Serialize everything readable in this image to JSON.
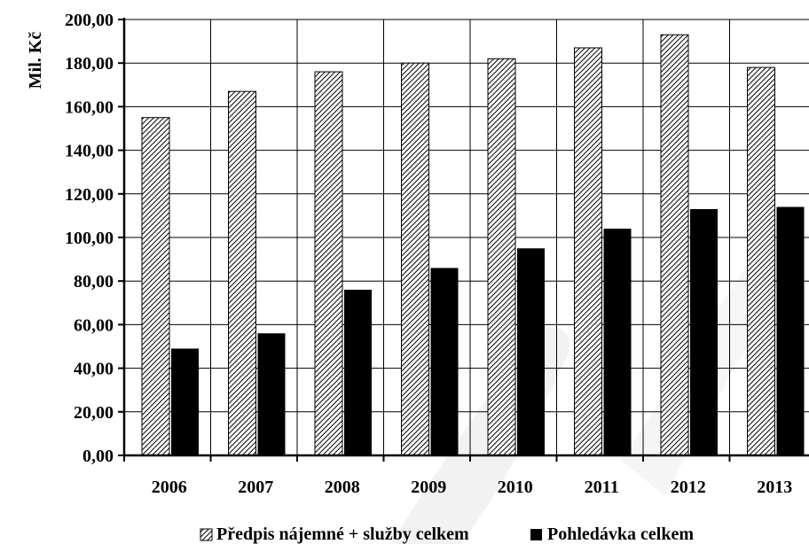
{
  "chart_data": {
    "type": "bar",
    "categories": [
      "2006",
      "2007",
      "2008",
      "2009",
      "2010",
      "2011",
      "2012",
      "2013"
    ],
    "series": [
      {
        "name": "Předpis nájemné + služby celkem",
        "values": [
          155,
          167,
          176,
          180,
          182,
          187,
          193,
          178
        ],
        "pattern": "diagonal-hatch"
      },
      {
        "name": "Pohledávka celkem",
        "values": [
          49,
          56,
          76,
          86,
          95,
          104,
          113,
          114
        ],
        "pattern": "solid-black"
      }
    ],
    "ylabel": "Mil. Kč",
    "xlabel": "",
    "title": "",
    "ylim": [
      0,
      200
    ],
    "yticks": [
      0,
      20,
      40,
      60,
      80,
      100,
      120,
      140,
      160,
      180,
      200
    ],
    "ytick_labels": [
      "0,00",
      "20,00",
      "40,00",
      "60,00",
      "80,00",
      "100,00",
      "120,00",
      "140,00",
      "160,00",
      "180,00",
      "200,00"
    ],
    "grid": true,
    "legend_position": "bottom"
  },
  "colors": {
    "bar_fill": "#000000",
    "hatch_background": "#ffffff",
    "grid": "#000000",
    "watermark": "#e8e8e8"
  }
}
